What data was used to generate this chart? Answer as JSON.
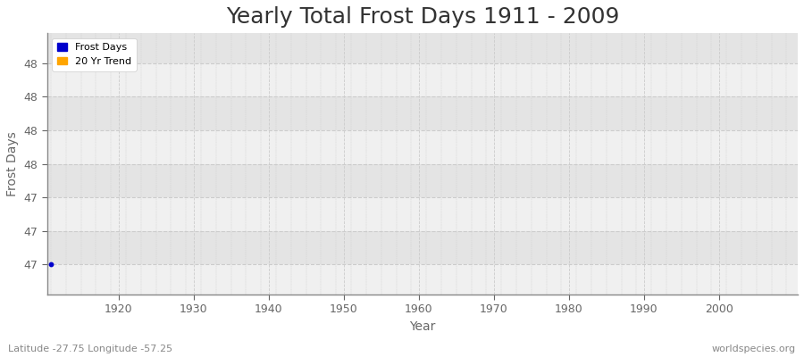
{
  "title": "Yearly Total Frost Days 1911 - 2009",
  "xlabel": "Year",
  "ylabel": "Frost Days",
  "year_start": 1911,
  "year_end": 2009,
  "frost_days_value": 47.0,
  "ylim_min": 46.82,
  "ylim_max": 48.38,
  "xtick_start": 1920,
  "xtick_end": 2000,
  "xtick_step": 10,
  "frost_color": "#0000cc",
  "trend_color": "#ffa500",
  "fig_bg": "#ffffff",
  "plot_bg_light": "#f0f0f0",
  "plot_bg_dark": "#e4e4e4",
  "grid_color": "#cccccc",
  "spine_color": "#888888",
  "text_color": "#333333",
  "tick_color": "#666666",
  "legend_frost": "Frost Days",
  "legend_trend": "20 Yr Trend",
  "footer_left": "Latitude -27.75 Longitude -57.25",
  "footer_right": "worldspecies.org",
  "title_fontsize": 18,
  "axis_label_fontsize": 10,
  "tick_fontsize": 9,
  "footer_fontsize": 8,
  "ytick_values": [
    47.0,
    47.2,
    47.4,
    47.6,
    47.8,
    48.0,
    48.2
  ],
  "ytick_labels": [
    "47",
    "47",
    "47",
    "48",
    "48",
    "48",
    "48"
  ]
}
